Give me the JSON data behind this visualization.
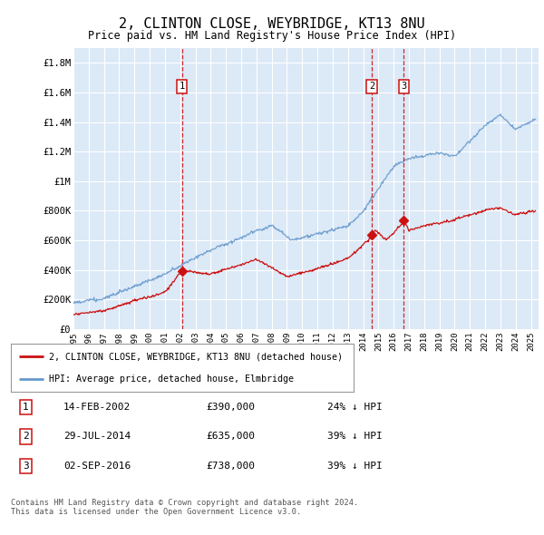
{
  "title": "2, CLINTON CLOSE, WEYBRIDGE, KT13 8NU",
  "subtitle": "Price paid vs. HM Land Registry's House Price Index (HPI)",
  "background_color": "#ffffff",
  "plot_bg_color": "#dce9f7",
  "grid_color": "#ffffff",
  "ylim": [
    0,
    1900000
  ],
  "xlim_start": 1995.0,
  "xlim_end": 2025.5,
  "yticks": [
    0,
    200000,
    400000,
    600000,
    800000,
    1000000,
    1200000,
    1400000,
    1600000,
    1800000
  ],
  "ytick_labels": [
    "£0",
    "£200K",
    "£400K",
    "£600K",
    "£800K",
    "£1M",
    "£1.2M",
    "£1.4M",
    "£1.6M",
    "£1.8M"
  ],
  "xtick_labels": [
    "95",
    "96",
    "97",
    "98",
    "99",
    "00",
    "01",
    "02",
    "03",
    "04",
    "05",
    "06",
    "07",
    "08",
    "09",
    "10",
    "11",
    "12",
    "13",
    "14",
    "15",
    "16",
    "17",
    "18",
    "19",
    "20",
    "21",
    "22",
    "23",
    "24",
    "25"
  ],
  "xticks": [
    1995,
    1996,
    1997,
    1998,
    1999,
    2000,
    2001,
    2002,
    2003,
    2004,
    2005,
    2006,
    2007,
    2008,
    2009,
    2010,
    2011,
    2012,
    2013,
    2014,
    2015,
    2016,
    2017,
    2018,
    2019,
    2020,
    2021,
    2022,
    2023,
    2024,
    2025
  ],
  "hpi_color": "#6699cc",
  "price_color": "#cc1111",
  "sale_events": [
    {
      "num": 1,
      "year": 2002.12,
      "price": 390000,
      "date": "14-FEB-2002",
      "pct": "24%",
      "dir": "↓"
    },
    {
      "num": 2,
      "year": 2014.57,
      "price": 635000,
      "date": "29-JUL-2014",
      "pct": "39%",
      "dir": "↓"
    },
    {
      "num": 3,
      "year": 2016.67,
      "price": 738000,
      "date": "02-SEP-2016",
      "pct": "39%",
      "dir": "↓"
    }
  ],
  "legend_line1": "2, CLINTON CLOSE, WEYBRIDGE, KT13 8NU (detached house)",
  "legend_line2": "HPI: Average price, detached house, Elmbridge",
  "footer1": "Contains HM Land Registry data © Crown copyright and database right 2024.",
  "footer2": "This data is licensed under the Open Government Licence v3.0."
}
